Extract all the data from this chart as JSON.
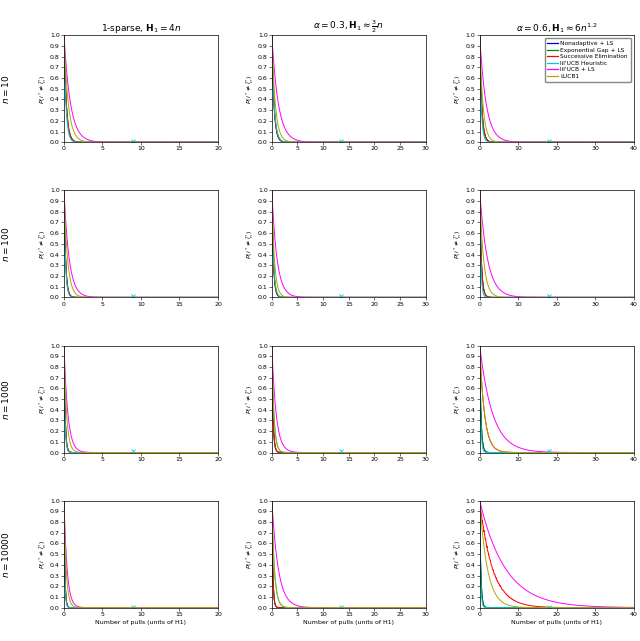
{
  "col_titles": [
    "1-sparse, $\\mathbf{H}_1 = 4n$",
    "$\\alpha = 0.3, \\mathbf{H}_1 \\approx \\frac{3}{2}n$",
    "$\\alpha = 0.6, \\mathbf{H}_1 \\approx 6n^{1.2}$"
  ],
  "row_labels": [
    "$n = 10$",
    "$n = 100$",
    "$n = 1000$",
    "$n = 10000$"
  ],
  "xlabel": "Number of pulls (units of H1)",
  "legend_entries": [
    "Nonadaptive + LS",
    "Exponential Gap + LS",
    "Successive Elimination",
    "lil'UCB Heuristic",
    "lil'UCB + LS",
    "LUCB1"
  ],
  "legend_colors": [
    "#0000CC",
    "#008800",
    "#FF0000",
    "#00CCCC",
    "#FF00FF",
    "#AAAA00"
  ],
  "xlims": [
    20,
    30,
    40
  ],
  "n_values": [
    10,
    100,
    1000,
    10000
  ],
  "background": "#FFFFFF",
  "curve_rates": {
    "col0": {
      "r0": [
        3.5,
        3.4,
        3.3,
        4.0,
        1.2,
        1.8
      ],
      "r1": [
        5.0,
        4.9,
        4.8,
        5.5,
        1.5,
        2.2
      ],
      "r2": [
        7.0,
        6.9,
        6.8,
        8.0,
        2.0,
        3.0
      ],
      "r3": [
        9.0,
        8.9,
        8.8,
        10.0,
        2.5,
        3.5
      ]
    },
    "col1": {
      "r0": [
        2.5,
        2.4,
        2.3,
        2.2,
        0.8,
        1.5
      ],
      "r1": [
        3.5,
        3.4,
        3.3,
        3.0,
        1.0,
        2.0
      ],
      "r2": [
        4.5,
        4.4,
        4.3,
        2.5,
        1.2,
        2.5
      ],
      "r3": [
        5.5,
        5.4,
        5.3,
        2.0,
        0.8,
        2.0
      ]
    },
    "col2": {
      "r0": [
        2.0,
        1.95,
        1.9,
        2.5,
        0.6,
        1.2
      ],
      "r1": [
        2.5,
        2.45,
        2.4,
        3.5,
        0.5,
        1.0
      ],
      "r2": [
        3.0,
        2.95,
        0.8,
        4.0,
        0.3,
        0.8
      ],
      "r3": [
        3.5,
        3.45,
        0.3,
        4.5,
        0.15,
        0.5
      ]
    }
  }
}
